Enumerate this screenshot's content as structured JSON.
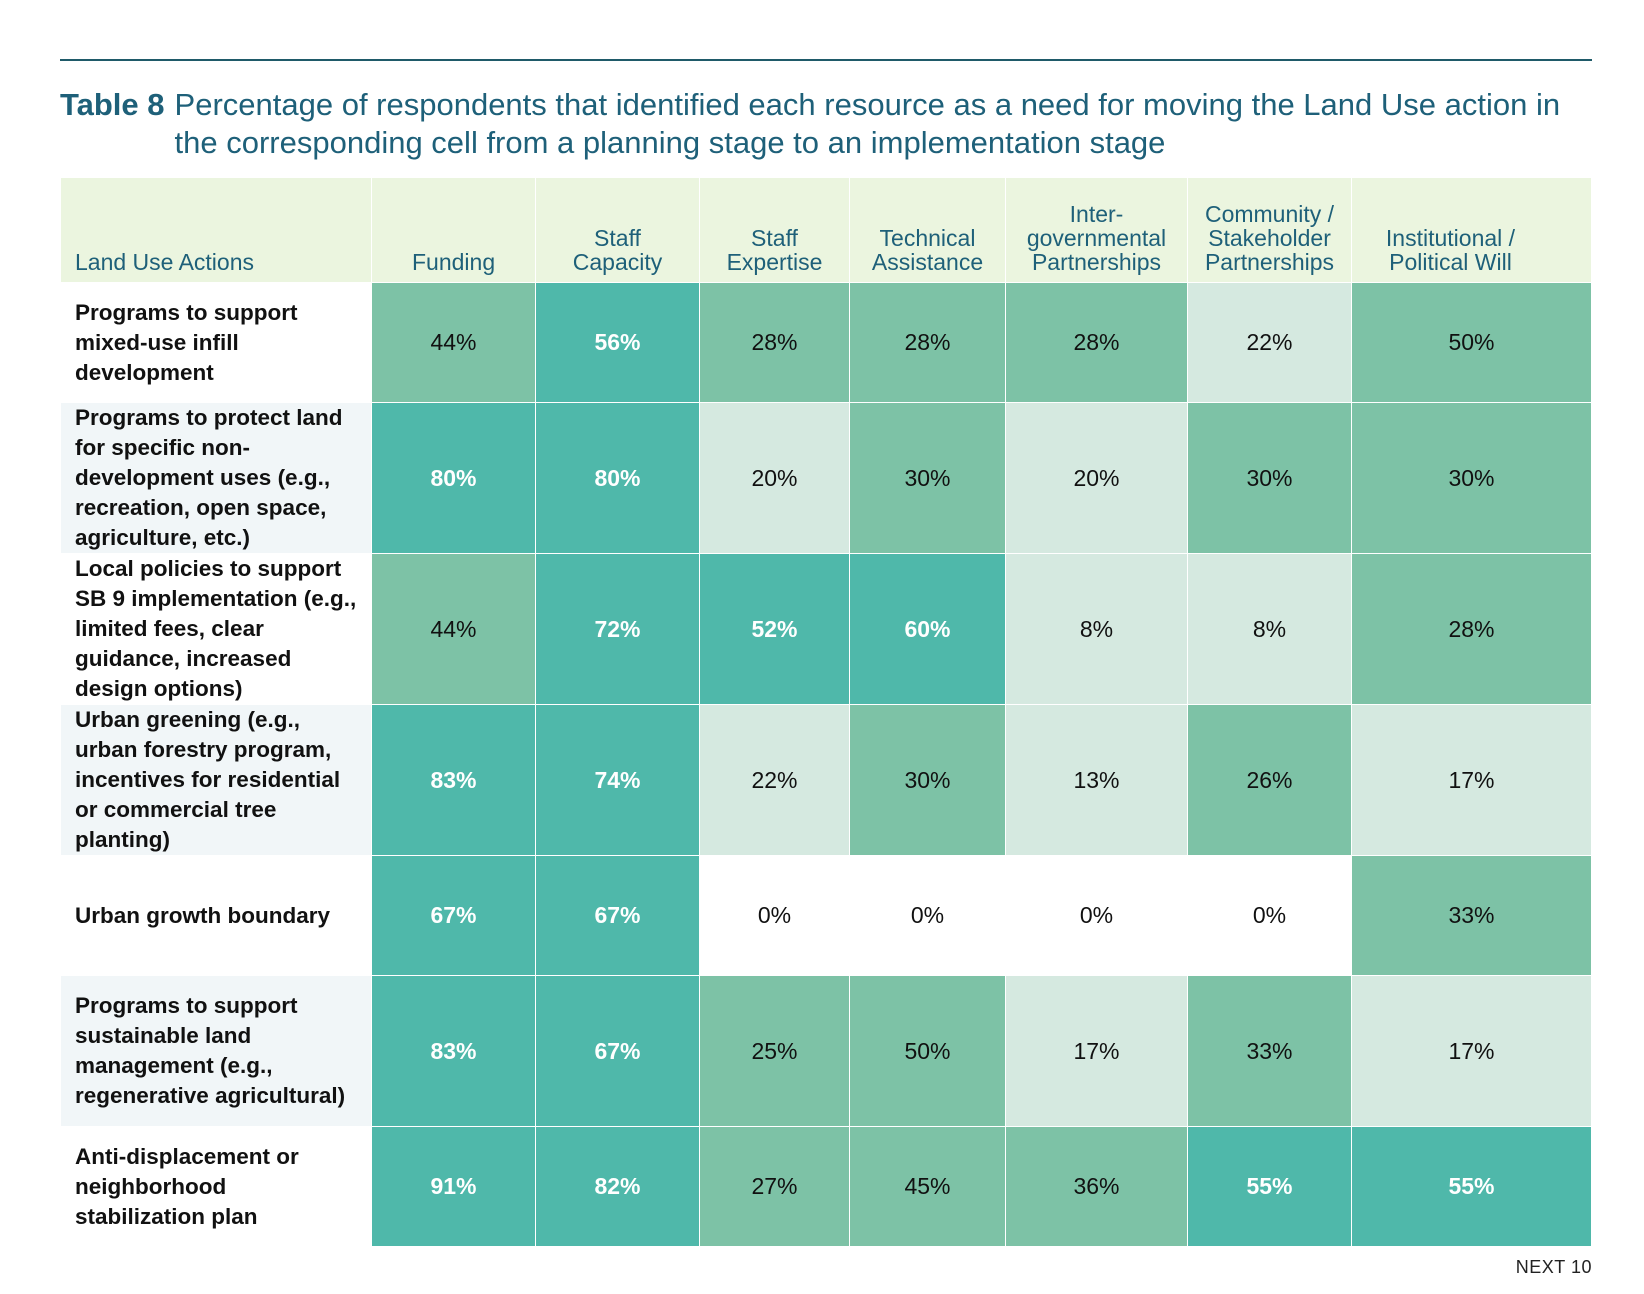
{
  "caption": {
    "label": "Table 8",
    "text": "Percentage of respondents that identified each resource as a need for moving the Land Use action in the corresponding cell from a planning stage to an implementation stage"
  },
  "columns": [
    "Land Use Actions",
    "Funding",
    "Staff Capacity",
    "Staff Expertise",
    "Technical Assistance",
    "Inter-governmental Partnerships",
    "Community / Stakeholder Partnerships",
    "Institutional / Political Will"
  ],
  "colors": {
    "dark": "#4fb8aa",
    "mid": "#7dc2a6",
    "light": "#d5e9e0",
    "none": "#ffffff",
    "row_alt": "#f1f6f8",
    "header_bg": "#ebf5df",
    "accent": "#1e6079"
  },
  "rows": [
    {
      "action": "Programs to support mixed-use infill development",
      "values": [
        "44%",
        "56%",
        "28%",
        "28%",
        "28%",
        "22%",
        "50%"
      ],
      "shades": [
        "mid",
        "dark",
        "mid",
        "mid",
        "mid",
        "light",
        "mid"
      ]
    },
    {
      "action": "Programs to protect land for specific non-development uses (e.g., recreation, open space, agriculture, etc.)",
      "values": [
        "80%",
        "80%",
        "20%",
        "30%",
        "20%",
        "30%",
        "30%"
      ],
      "shades": [
        "dark",
        "dark",
        "light",
        "mid",
        "light",
        "mid",
        "mid"
      ]
    },
    {
      "action": "Local policies to support SB 9 implementation (e.g., limited fees, clear guidance, increased design options)",
      "values": [
        "44%",
        "72%",
        "52%",
        "60%",
        "8%",
        "8%",
        "28%"
      ],
      "shades": [
        "mid",
        "dark",
        "dark",
        "dark",
        "light",
        "light",
        "mid"
      ]
    },
    {
      "action": "Urban greening (e.g., urban forestry program, incentives for residential or commercial tree planting)",
      "values": [
        "83%",
        "74%",
        "22%",
        "30%",
        "13%",
        "26%",
        "17%"
      ],
      "shades": [
        "dark",
        "dark",
        "light",
        "mid",
        "light",
        "mid",
        "light"
      ]
    },
    {
      "action": "Urban growth boundary",
      "values": [
        "67%",
        "67%",
        "0%",
        "0%",
        "0%",
        "0%",
        "33%"
      ],
      "shades": [
        "dark",
        "dark",
        "none",
        "none",
        "none",
        "none",
        "mid"
      ]
    },
    {
      "action": "Programs to support sustainable land management (e.g., regenerative agricultural)",
      "values": [
        "83%",
        "67%",
        "25%",
        "50%",
        "17%",
        "33%",
        "17%"
      ],
      "shades": [
        "dark",
        "dark",
        "mid",
        "mid",
        "light",
        "mid",
        "light"
      ]
    },
    {
      "action": "Anti-displacement or neighborhood stabilization plan",
      "values": [
        "91%",
        "82%",
        "27%",
        "45%",
        "36%",
        "55%",
        "55%"
      ],
      "shades": [
        "dark",
        "dark",
        "mid",
        "mid",
        "mid",
        "dark",
        "dark"
      ]
    }
  ],
  "footer": {
    "note": "NEXT 10"
  }
}
